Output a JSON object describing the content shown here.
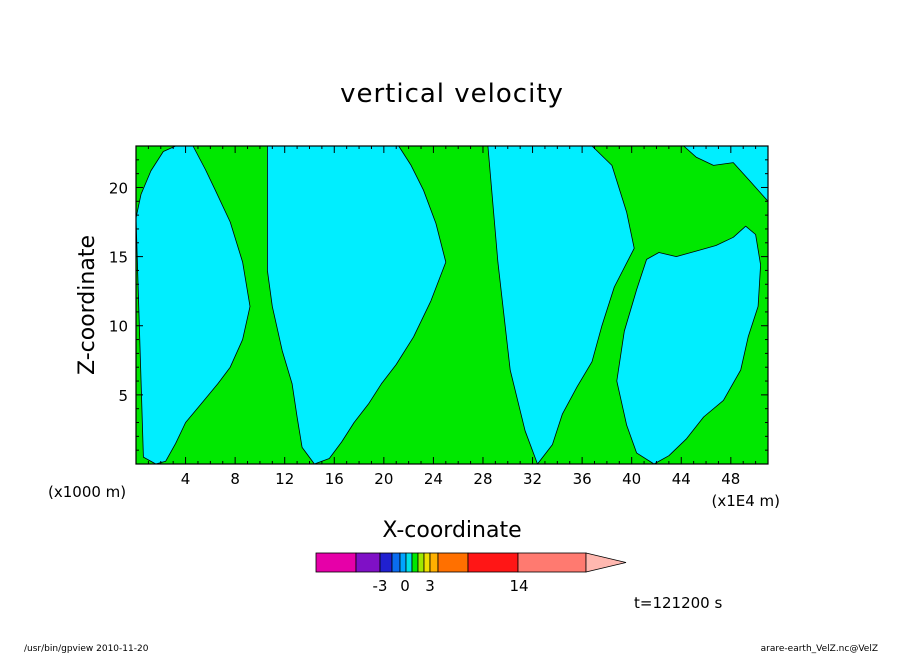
{
  "chart_data": {
    "type": "heatmap",
    "title": "vertical velocity",
    "xlabel": "X-coordinate",
    "ylabel": "Z-coordinate",
    "x_unit_left": "(x1000 m)",
    "x_unit_right": "(x1E4 m)",
    "x_ticks": [
      4,
      8,
      12,
      16,
      20,
      24,
      28,
      32,
      36,
      40,
      44,
      48
    ],
    "y_ticks": [
      5,
      10,
      15,
      20
    ],
    "xlim": [
      0,
      51
    ],
    "ylim": [
      0,
      23
    ],
    "colors": {
      "positive_small": "#00e800",
      "negative_small": "#00eeff",
      "contour": "#000000"
    },
    "regions": [
      {
        "name": "cyan",
        "color": "#00eeff",
        "x": [
          0,
          0.4,
          1.2,
          2.2,
          3.2,
          4.6,
          5.6,
          6.4,
          7.6,
          8.6,
          9.2,
          8.6,
          7.6,
          6.6,
          5.4,
          4.0,
          3.2,
          2.4,
          1.6,
          0.6
        ],
        "z": [
          17.8,
          19.5,
          21.2,
          22.6,
          23,
          23,
          21.3,
          19.8,
          17.5,
          14.6,
          11.4,
          9.0,
          7.0,
          5.8,
          4.5,
          3.0,
          1.5,
          0.2,
          0,
          0.5
        ]
      },
      {
        "name": "cyan",
        "color": "#00eeff",
        "x": [
          10.6,
          11.6,
          12.8,
          14.4,
          16.2,
          17.6,
          19.4,
          21.2,
          22.2,
          23.2,
          24.2,
          25.0,
          23.8,
          22.4,
          21.0,
          19.8,
          18.8,
          17.6,
          16.6,
          15.6,
          14.4,
          13.4,
          13.0,
          12.6,
          11.8,
          11.0,
          10.6
        ],
        "z": [
          23,
          23,
          23,
          23,
          23,
          23,
          23,
          23,
          21.6,
          19.8,
          17.4,
          14.6,
          11.8,
          9.2,
          7.2,
          5.8,
          4.4,
          3.0,
          1.6,
          0.4,
          0,
          1.2,
          3.4,
          5.8,
          8.2,
          11.4,
          14.0
        ]
      },
      {
        "name": "cyan",
        "color": "#00eeff",
        "x": [
          28.4,
          29.4,
          30.8,
          32.2,
          33.6,
          35.2,
          36.8,
          38.4,
          39.6,
          40.2,
          38.6,
          37.6,
          36.8,
          35.6,
          34.4,
          33.6,
          32.4,
          31.4,
          30.2,
          29.2
        ],
        "z": [
          23,
          23,
          23,
          23,
          23,
          23,
          23,
          21.6,
          18.2,
          15.6,
          12.8,
          10.0,
          7.4,
          5.6,
          3.6,
          1.4,
          0,
          2.4,
          6.8,
          14.6
        ]
      },
      {
        "name": "cyan",
        "color": "#00eeff",
        "x": [
          41.2,
          42.2,
          43.6,
          45.2,
          46.8,
          48.2,
          49.2,
          50.0,
          50.4,
          50.2,
          49.4,
          48.8,
          47.4,
          45.8,
          44.4,
          43.0,
          41.8,
          40.4,
          39.6,
          38.8,
          39.4,
          40.4
        ],
        "z": [
          14.8,
          15.3,
          15.0,
          15.4,
          15.8,
          16.4,
          17.2,
          16.6,
          14.4,
          11.4,
          9.2,
          6.8,
          4.6,
          3.4,
          1.8,
          0.6,
          0,
          0.8,
          2.8,
          6.0,
          9.6,
          12.6
        ]
      },
      {
        "name": "cyan",
        "color": "#00eeff",
        "x": [
          44.2,
          45.4,
          46.8,
          48.2,
          49.4,
          50.4,
          51.0,
          51.0,
          49.6,
          48.2,
          46.6,
          45.2
        ],
        "z": [
          23,
          23,
          23,
          23,
          23,
          23,
          23,
          19.0,
          20.4,
          21.8,
          21.6,
          22.2
        ]
      }
    ],
    "colorbar": {
      "colors": [
        "#e600a8",
        "#7f10c6",
        "#2020d0",
        "#0a6cf0",
        "#00a4ff",
        "#00e0e6",
        "#00e800",
        "#9ee800",
        "#eee000",
        "#ffb000",
        "#ff7000",
        "#ff1616",
        "#ff7a70",
        "#ffb8b0"
      ],
      "labels": [
        "-3",
        "0",
        "3",
        "14"
      ]
    },
    "time_label": "t=121200 s"
  },
  "footer": {
    "left": "/usr/bin/gpview   2010-11-20",
    "right": "arare-earth_VelZ.nc@VelZ"
  }
}
